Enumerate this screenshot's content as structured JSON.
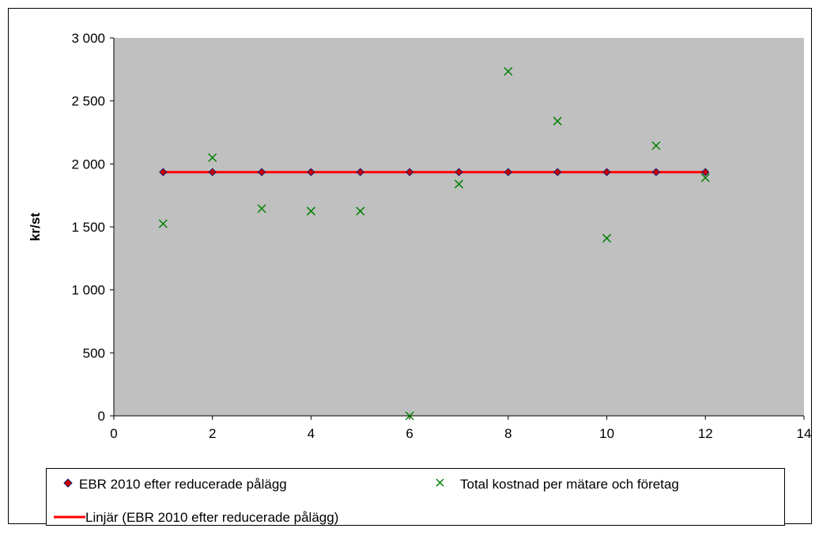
{
  "chart_data": {
    "type": "scatter",
    "title": "",
    "xlabel": "",
    "ylabel": "kr/st",
    "xlim": [
      0,
      14
    ],
    "ylim": [
      0,
      3000
    ],
    "x_ticks": [
      0,
      2,
      4,
      6,
      8,
      10,
      12,
      14
    ],
    "y_ticks": [
      0,
      500,
      1000,
      1500,
      2000,
      2500,
      3000
    ],
    "x_tick_labels": [
      "0",
      "2",
      "4",
      "6",
      "8",
      "10",
      "12",
      "14"
    ],
    "y_tick_labels": [
      "0",
      "500",
      "1 000",
      "1 500",
      "2 000",
      "2 500",
      "3 000"
    ],
    "grid": false,
    "plot_background": "#C0C0C0",
    "legend_position": "bottom",
    "series": [
      {
        "name": "EBR 2010 efter reducerade pålägg",
        "marker": "diamond",
        "color": "#CC0000",
        "x": [
          1,
          2,
          3,
          4,
          5,
          6,
          7,
          8,
          9,
          10,
          11,
          12
        ],
        "y": [
          1935,
          1935,
          1935,
          1935,
          1935,
          1935,
          1935,
          1935,
          1935,
          1935,
          1935,
          1935
        ]
      },
      {
        "name": "Total kostnad per mätare och företag",
        "marker": "x",
        "color": "#008000",
        "x": [
          1,
          2,
          3,
          4,
          5,
          6,
          7,
          8,
          9,
          10,
          11,
          12
        ],
        "y": [
          1525,
          2050,
          1645,
          1625,
          1625,
          0,
          1840,
          2735,
          2340,
          1410,
          2145,
          1890
        ]
      },
      {
        "name": "Linjär (EBR 2010 efter reducerade pålägg)",
        "marker": "line",
        "color": "#FF0000",
        "x": [
          1,
          12
        ],
        "y": [
          1935,
          1935
        ]
      }
    ]
  }
}
